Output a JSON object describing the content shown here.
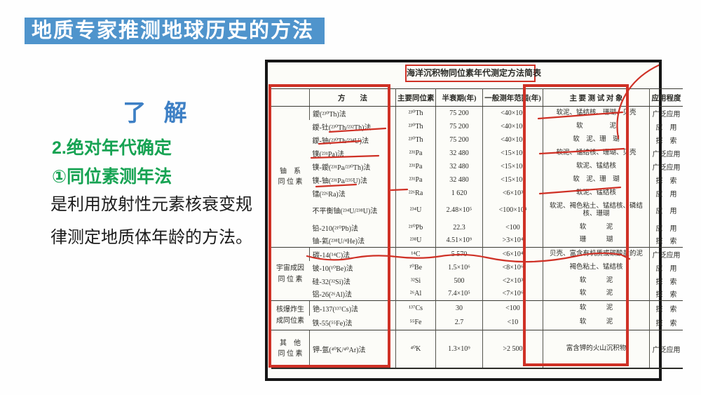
{
  "slide": {
    "banner": "地质专家推测地球历史的方法",
    "lede": "了 解",
    "heading1": "2.绝对年代确定",
    "heading2": "①同位素测年法",
    "body_lines": [
      "是利用放射性元素核衰变规",
      "律测定地质体年龄的方法。"
    ]
  },
  "colors": {
    "banner_blue": "#4f94cc",
    "lede_blue": "#3e80c5",
    "heading_green": "#17a353",
    "annotation_red": "#cf3126",
    "figure_border_black": "#161616"
  },
  "table": {
    "title": "海洋沉积物同位素年代测定方法简表",
    "headers": [
      "",
      "方　　法",
      "主要同位素",
      "半衰期(年)",
      "一般测年范围(年)",
      "主 要 测 试 对 象",
      "应用程度"
    ],
    "groups": [
      {
        "label": [
          "铀　系",
          "同 位 素"
        ],
        "rows": [
          {
            "method": "鑀(²³⁰Th)法",
            "isotope": "²³⁰Th",
            "half_life": "75 200",
            "range": "<40×10⁴",
            "objects": "软泥、锰结核、珊瑚、贝壳",
            "application": "广泛应用"
          },
          {
            "method": "鑀-钍(²³⁰Th/²³²Th)法",
            "isotope": "²³⁰Th",
            "half_life": "75 200",
            "range": "<40×10⁴",
            "objects": "软　　　　泥",
            "application": "应　用"
          },
          {
            "method": "鑀-铀(²³⁰Th/²³⁴U)法",
            "isotope": "²³⁰Th",
            "half_life": "75 200",
            "range": "<40×10⁴",
            "objects": "软　泥、珊　瑚",
            "application": "探　索"
          },
          {
            "method": "镤(²³¹Pa)法",
            "isotope": "²³¹Pa",
            "half_life": "32 480",
            "range": "<15×10⁴",
            "objects": "软泥、锰结核、珊瑚、贝壳",
            "application": "广泛应用"
          },
          {
            "method": "镤-鑀(²³¹Pa/²³⁰Th)法",
            "isotope": "²³¹Pa",
            "half_life": "32 480",
            "range": "<15×10⁴",
            "objects": "软泥、锰结核",
            "application": "广泛应用"
          },
          {
            "method": "镤-铀(²³¹Pa/²³⁵U)法",
            "isotope": "²³¹Pa",
            "half_life": "32 480",
            "range": "<15×10⁴",
            "objects": "软　泥、珊　瑚",
            "application": "探　索"
          },
          {
            "method": "镭(²²⁶Ra)法",
            "isotope": "²²⁶Ra",
            "half_life": "1 620",
            "range": "<6×10³",
            "objects": "软泥、锰结核",
            "application": "应　用"
          },
          {
            "method": "不平衡铀(²³⁴U/²³⁸U)法",
            "isotope": "²³⁴U",
            "half_life": "2.48×10⁵",
            "range": "<100×10⁴",
            "objects": "软泥、褐色粘土、锰结核、磷结核、珊瑚",
            "application": "应　用"
          },
          {
            "method": "铅-210(²¹⁰Pb)法",
            "isotope": "²¹⁰Pb",
            "half_life": "22.3",
            "range": "<100",
            "objects": "软　　　泥",
            "application": "应　用"
          },
          {
            "method": "铀-氦(²³⁸U/⁴He)法",
            "isotope": "²³⁸U",
            "half_life": "4.51×10⁹",
            "range": ">3×10⁴",
            "objects": "珊　　　瑚",
            "application": "探　索"
          }
        ]
      },
      {
        "label": [
          "宇宙成因",
          "同 位 素"
        ],
        "rows": [
          {
            "method": "碳-14(¹⁴C)法",
            "isotope": "¹⁴C",
            "half_life": "5 570",
            "range": "<6×10⁴",
            "objects": "贝壳、富含有机质或碳酸盐的泥",
            "application": "广泛应用"
          },
          {
            "method": "铍-10(¹⁰Be)法",
            "isotope": "¹⁰Be",
            "half_life": "1.5×10⁶",
            "range": "<8×10⁶",
            "objects": "褐色粘土、锰结核",
            "application": "应　用"
          },
          {
            "method": "硅-32(³²Si)法",
            "isotope": "³²Si",
            "half_life": "500",
            "range": "<2×10³",
            "objects": "软　　　泥",
            "application": "探　索"
          },
          {
            "method": "铝-26(²⁶Al)法",
            "isotope": "²⁶Al",
            "half_life": "7.4×10⁵",
            "range": "<7×10⁶",
            "objects": "软　　　泥",
            "application": "探　索"
          }
        ]
      },
      {
        "label": [
          "核爆炸生",
          "成同位素"
        ],
        "rows": [
          {
            "method": "铯-137(¹³⁷Cs)法",
            "isotope": "¹³⁷Cs",
            "half_life": "30",
            "range": "<100",
            "objects": "软　　　泥",
            "application": "探　索"
          },
          {
            "method": "铁-55(⁵⁵Fe)法",
            "isotope": "⁵⁵Fe",
            "half_life": "2.7",
            "range": "<10",
            "objects": "软　　　泥",
            "application": "探　索"
          }
        ]
      },
      {
        "label": [
          "其　他",
          "同 位 素"
        ],
        "rows": [
          {
            "method": "钾-氩(⁴⁰K/⁴⁰Ar)法",
            "isotope": "⁴⁰K",
            "half_life": "1.3×10⁹",
            "range": ">2 500",
            "objects": "富含钾的火山沉积物",
            "application": "广泛应用"
          }
        ]
      }
    ]
  }
}
